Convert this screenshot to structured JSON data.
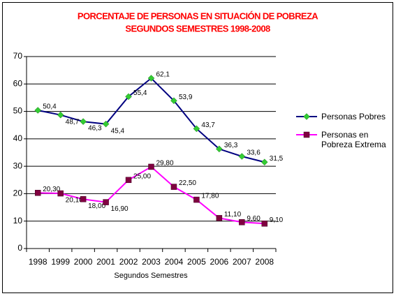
{
  "chart_data": {
    "type": "line",
    "title": "PORCENTAJE DE PERSONAS EN SITUACIÓN DE POBREZA",
    "subtitle": "SEGUNDOS SEMESTRES 1998-2008",
    "x_label": "Segundos Semestres",
    "categories": [
      "1998",
      "1999",
      "2000",
      "2001",
      "2002",
      "2003",
      "2004",
      "2005",
      "2006",
      "2007",
      "2008"
    ],
    "series": [
      {
        "name": "Personas Pobres",
        "color": "#000080",
        "marker_color": "#33cc33",
        "marker": "diamond",
        "values": [
          50.4,
          48.7,
          46.3,
          45.4,
          55.4,
          62.1,
          53.9,
          43.7,
          36.3,
          33.6,
          31.5
        ],
        "value_labels": [
          "50,4",
          "48,7",
          "46,3",
          "45,4",
          "55,4",
          "62,1",
          "53,9",
          "43,7",
          "36,3",
          "33,6",
          "31,5"
        ]
      },
      {
        "name": "Personas en Pobreza Extrema",
        "color": "#ff00ff",
        "marker_color": "#800040",
        "marker": "square",
        "values": [
          20.3,
          20.1,
          18.0,
          16.9,
          25.0,
          29.8,
          22.5,
          17.8,
          11.1,
          9.6,
          9.1
        ],
        "value_labels": [
          "20,30",
          "20,10",
          "18,00",
          "16,90",
          "25,00",
          "29,80",
          "22,50",
          "17,80",
          "11,10",
          "9,60",
          "9,10"
        ]
      }
    ],
    "ylim": [
      0,
      70
    ],
    "yticks": [
      0,
      10,
      20,
      30,
      40,
      50,
      60,
      70
    ],
    "grid": true,
    "legend": "right"
  }
}
